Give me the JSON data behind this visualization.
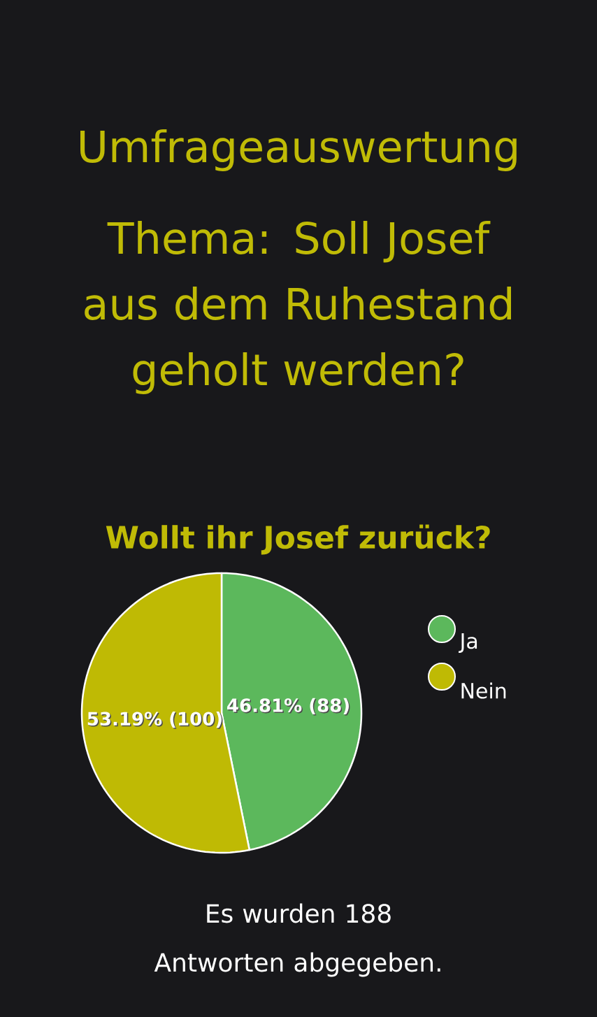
{
  "chart_data": {
    "type": "pie",
    "title": "Umfrageauswertung",
    "subtitle": "Thema: Soll Josef aus dem Ruhestand geholt werden?",
    "annotations": [
      "Wollt ihr Josef zurück?",
      "Es wurden 188 Antworten abgegeben."
    ],
    "categories": [
      "Ja",
      "Nein"
    ],
    "values": [
      88,
      100
    ],
    "colors": [
      "#5cb85c",
      "#bfba04"
    ],
    "value_labels": [
      "46.81% (88)",
      "53.19% (100)"
    ],
    "legend": "right"
  }
}
